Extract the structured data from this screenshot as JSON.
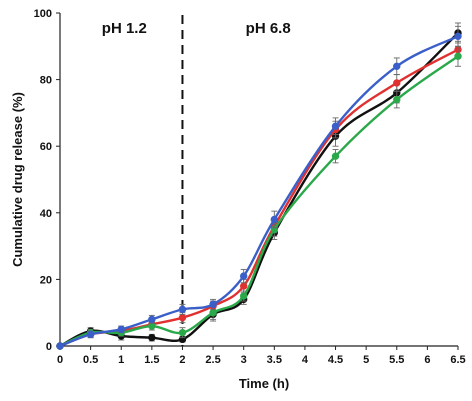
{
  "chart_data": {
    "type": "line",
    "title": "",
    "xlabel": "Time (h)",
    "ylabel": "Cumulative drug release (%)",
    "xlim": [
      0,
      6.5
    ],
    "ylim": [
      0,
      100
    ],
    "x_ticks": [
      "0",
      "0.5",
      "1",
      "1.5",
      "2",
      "2.5",
      "3",
      "3.5",
      "4",
      "4.5",
      "5",
      "5.5",
      "6",
      "6.5"
    ],
    "y_ticks": [
      "0",
      "20",
      "40",
      "60",
      "80",
      "100"
    ],
    "x": [
      0,
      0.5,
      1,
      1.5,
      2,
      2.5,
      3,
      3.5,
      4.5,
      5.5,
      6.5
    ],
    "grid": false,
    "annotations": [
      {
        "text": "pH 1.2",
        "x": 1.05,
        "y": 94
      },
      {
        "text": "pH 6.8",
        "x": 3.4,
        "y": 94
      }
    ],
    "divider_x": 2,
    "series": [
      {
        "color": "#111111",
        "values": [
          0,
          4.5,
          3,
          2.5,
          2,
          9.5,
          14,
          34,
          63,
          76,
          94
        ],
        "errors": [
          0,
          1,
          1.2,
          1,
          0.8,
          2,
          1.5,
          2,
          3,
          3,
          3
        ]
      },
      {
        "color": "#e03030",
        "values": [
          0,
          3.5,
          4.5,
          6.5,
          8.5,
          12,
          18,
          36,
          65,
          79,
          89
        ],
        "errors": [
          0,
          1,
          1,
          1,
          1.5,
          1.5,
          2,
          2,
          2.5,
          2.5,
          2.5
        ]
      },
      {
        "color": "#2aa84a",
        "values": [
          0,
          4,
          4,
          6,
          4,
          10,
          15,
          35,
          57,
          74,
          87
        ],
        "errors": [
          0,
          1,
          1,
          1.2,
          1.5,
          2,
          1.5,
          2,
          2,
          2.5,
          3
        ]
      },
      {
        "color": "#3a5fc8",
        "values": [
          0,
          3.5,
          5,
          8,
          11,
          12.5,
          21,
          38,
          66,
          84,
          93
        ],
        "errors": [
          0,
          1,
          1,
          1.2,
          1.5,
          1.5,
          2,
          2.5,
          2.5,
          2.5,
          3
        ]
      }
    ]
  }
}
